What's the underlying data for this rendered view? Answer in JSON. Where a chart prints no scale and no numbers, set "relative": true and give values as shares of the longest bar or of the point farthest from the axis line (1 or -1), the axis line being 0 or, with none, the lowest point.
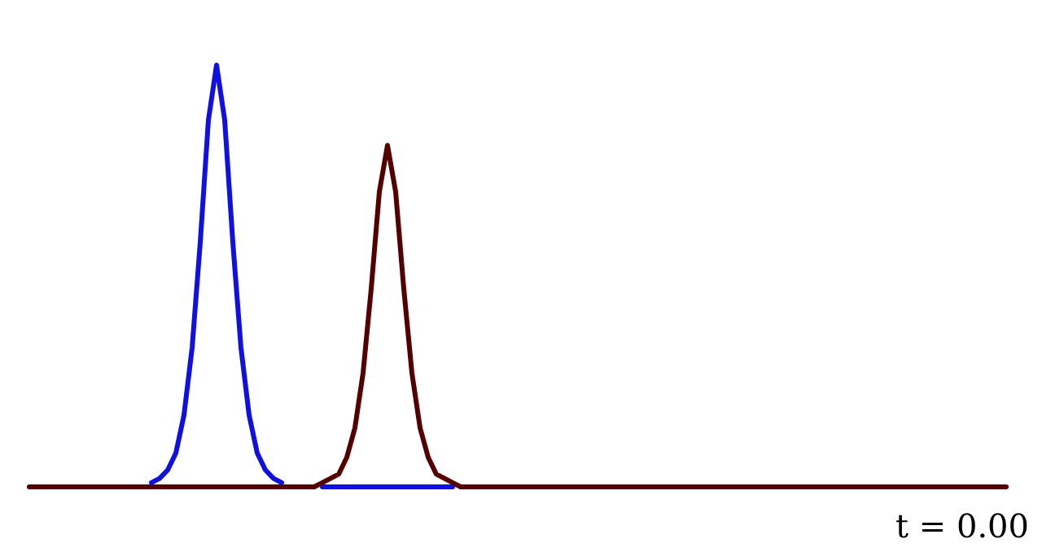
{
  "chart_data": {
    "type": "line",
    "relative": true,
    "line_style": "solid",
    "annotations": [
      "t = 0.00"
    ],
    "categories": [
      null,
      null,
      null,
      null,
      null,
      null,
      null,
      null,
      null,
      null,
      null,
      null,
      null,
      null,
      null,
      null,
      null,
      null,
      null,
      null,
      null,
      null,
      null,
      null,
      null,
      null,
      null,
      null,
      null,
      null,
      null,
      null,
      null,
      null,
      null,
      null,
      null,
      null,
      null,
      null,
      null,
      null,
      null,
      null,
      null,
      null,
      null,
      null,
      null,
      null,
      null,
      null,
      null,
      null,
      null,
      null,
      null,
      null,
      null,
      null,
      null,
      null,
      null,
      null,
      null,
      null,
      null,
      null,
      null,
      null,
      null,
      null,
      null,
      null,
      null,
      null,
      null,
      null,
      null,
      null,
      null,
      null,
      null,
      null,
      null,
      null,
      null,
      null,
      null,
      null,
      null,
      null,
      null,
      null,
      null,
      null,
      null,
      null,
      null,
      null,
      null,
      null,
      null,
      null,
      null,
      null,
      null,
      null,
      null,
      null,
      null,
      null,
      null,
      null,
      null,
      null,
      null,
      null,
      null,
      null,
      null
    ],
    "series": [
      {
        "color": "#1010e0",
        "values": [
          null,
          null,
          null,
          null,
          null,
          null,
          null,
          null,
          null,
          null,
          null,
          null,
          null,
          null,
          null,
          0.01,
          0.02,
          0.04,
          0.08,
          0.17,
          0.33,
          0.58,
          0.87,
          1,
          0.87,
          0.58,
          0.33,
          0.17,
          0.08,
          0.04,
          0.02,
          0.01,
          null,
          null,
          null,
          null,
          0,
          0,
          0,
          0,
          0,
          0,
          0,
          0,
          0,
          0,
          0,
          0,
          0,
          0,
          0,
          0,
          0,
          null,
          null,
          null,
          null,
          null,
          null,
          null,
          null,
          null,
          null,
          null,
          null,
          null,
          null,
          null,
          null,
          null,
          null,
          null,
          null,
          null,
          null,
          null,
          null,
          null,
          null,
          null,
          null,
          null,
          null,
          null,
          null,
          null,
          null,
          null,
          null,
          null,
          null,
          null,
          null,
          null,
          null,
          null,
          null,
          null,
          null,
          null,
          null,
          null,
          null,
          null,
          null,
          null,
          null,
          null,
          null,
          null,
          null,
          null,
          null,
          null,
          null,
          null,
          null,
          null,
          null,
          null,
          null
        ]
      },
      {
        "color": "#550000",
        "values": [
          0,
          0,
          0,
          0,
          0,
          0,
          0,
          0,
          0,
          0,
          0,
          0,
          0,
          0,
          0,
          0,
          0,
          0,
          0,
          0,
          0,
          0,
          0,
          0,
          0,
          0,
          0,
          0,
          0,
          0,
          0,
          0,
          0,
          0,
          0,
          0,
          0.01,
          0.02,
          0.03,
          0.07,
          0.14,
          0.27,
          0.47,
          0.7,
          0.81,
          0.7,
          0.47,
          0.27,
          0.14,
          0.07,
          0.03,
          0.02,
          0.01,
          0,
          0,
          0,
          0,
          0,
          0,
          0,
          0,
          0,
          0,
          0,
          0,
          0,
          0,
          0,
          0,
          0,
          0,
          0,
          0,
          0,
          0,
          0,
          0,
          0,
          0,
          0,
          0,
          0,
          0,
          0,
          0,
          0,
          0,
          0,
          0,
          0,
          0,
          0,
          0,
          0,
          0,
          0,
          0,
          0,
          0,
          0,
          0,
          0,
          0,
          0,
          0,
          0,
          0,
          0,
          0,
          0,
          0,
          0,
          0,
          0,
          0,
          0,
          0,
          0,
          0,
          0,
          0
        ]
      }
    ]
  }
}
